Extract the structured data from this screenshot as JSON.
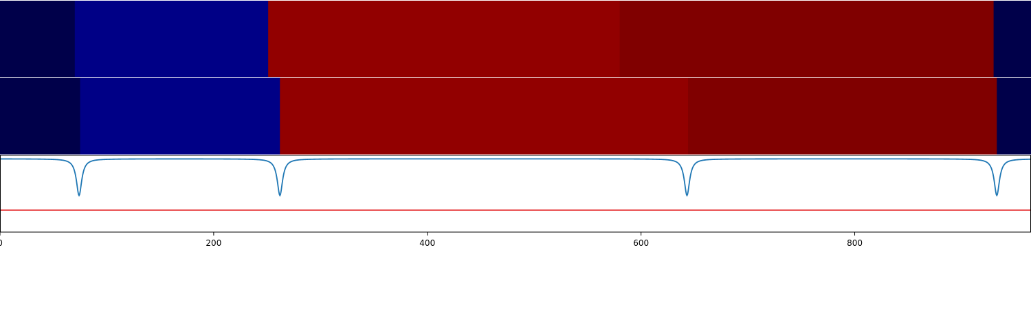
{
  "chart_data": [
    {
      "type": "heatmap",
      "xlim": [
        0,
        965
      ],
      "segments": [
        {
          "start": 0,
          "end": 70,
          "color": "#00004a"
        },
        {
          "start": 70,
          "end": 251,
          "color": "#000086"
        },
        {
          "start": 251,
          "end": 580,
          "color": "#920000"
        },
        {
          "start": 580,
          "end": 930,
          "color": "#800000"
        },
        {
          "start": 930,
          "end": 965,
          "color": "#00004a"
        }
      ]
    },
    {
      "type": "heatmap",
      "xlim": [
        0,
        965
      ],
      "segments": [
        {
          "start": 0,
          "end": 75,
          "color": "#00004a"
        },
        {
          "start": 75,
          "end": 262,
          "color": "#000086"
        },
        {
          "start": 262,
          "end": 644,
          "color": "#920000"
        },
        {
          "start": 644,
          "end": 933,
          "color": "#800000"
        },
        {
          "start": 933,
          "end": 965,
          "color": "#00004a"
        }
      ]
    },
    {
      "type": "line",
      "xlim": [
        0,
        965
      ],
      "ylim": [
        -1.0,
        0.05
      ],
      "grid": false,
      "xticks": [
        0,
        200,
        400,
        600,
        800
      ],
      "xtick_labels": [
        "0",
        "200",
        "400",
        "600",
        "800"
      ],
      "series": [
        {
          "dips": [
            74,
            262,
            643,
            933
          ],
          "depth": 0.5,
          "color": "#1f77b4"
        },
        {
          "x": [
            0,
            965
          ],
          "y": [
            -0.7,
            -0.7
          ],
          "color": "#e41a1c"
        }
      ]
    }
  ]
}
